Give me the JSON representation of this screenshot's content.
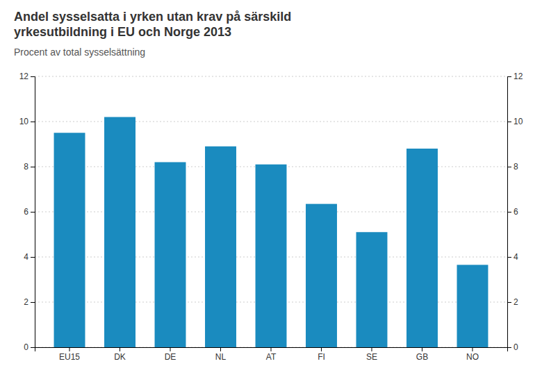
{
  "chart_data": {
    "type": "bar",
    "title": "Andel sysselsatta i yrken utan krav på särskild\nyrkesutbildning i EU och Norge 2013",
    "subtitle": "Procent av total sysselsättning",
    "categories": [
      "EU15",
      "DK",
      "DE",
      "NL",
      "AT",
      "FI",
      "SE",
      "GB",
      "NO"
    ],
    "values": [
      9.5,
      10.2,
      8.2,
      8.9,
      8.1,
      6.35,
      5.1,
      8.8,
      3.65
    ],
    "color": "#1a8bbf",
    "ylim": [
      0,
      12
    ],
    "yticks": [
      0,
      2,
      4,
      6,
      8,
      10,
      12
    ],
    "grid": true
  }
}
